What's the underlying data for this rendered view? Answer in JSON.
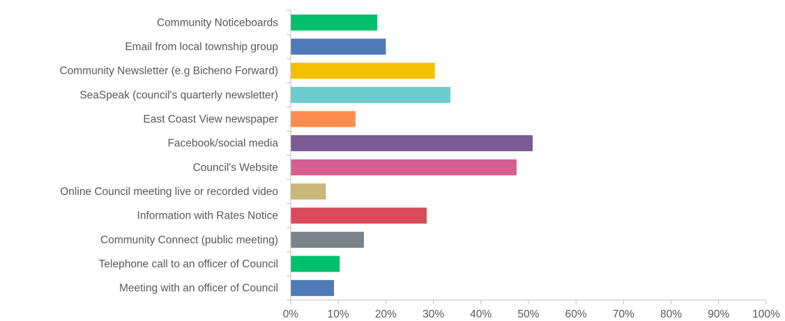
{
  "chart_data": {
    "type": "bar",
    "orientation": "horizontal",
    "categories": [
      "Community Noticeboards",
      "Email from local township group",
      "Community Newsletter (e.g Bicheno Forward)",
      "SeaSpeak (council's quarterly newsletter)",
      "East Coast View newspaper",
      "Facebook/social media",
      "Council's Website",
      "Online Council meeting live or recorded video",
      "Information with Rates Notice",
      "Community Connect (public meeting)",
      "Telephone call to an officer of Council",
      "Meeting with an officer of Council"
    ],
    "values": [
      18.2,
      20.0,
      30.3,
      33.6,
      13.6,
      50.9,
      47.5,
      7.4,
      28.6,
      15.4,
      10.3,
      9.1
    ],
    "colors": [
      "#00c06b",
      "#4f7ab8",
      "#f5bf00",
      "#6ccbcd",
      "#ff8c4f",
      "#7b5b92",
      "#d55f8e",
      "#c9b77c",
      "#d94a5a",
      "#7b8388",
      "#00c06b",
      "#4f7ab8"
    ],
    "xlim": [
      0,
      100
    ],
    "xticks": [
      0,
      10,
      20,
      30,
      40,
      50,
      60,
      70,
      80,
      90,
      100
    ],
    "xtick_labels": [
      "0%",
      "10%",
      "20%",
      "30%",
      "40%",
      "50%",
      "60%",
      "70%",
      "80%",
      "90%",
      "100%"
    ],
    "title": "",
    "xlabel": "",
    "ylabel": "",
    "grid": false,
    "legend": "none"
  }
}
